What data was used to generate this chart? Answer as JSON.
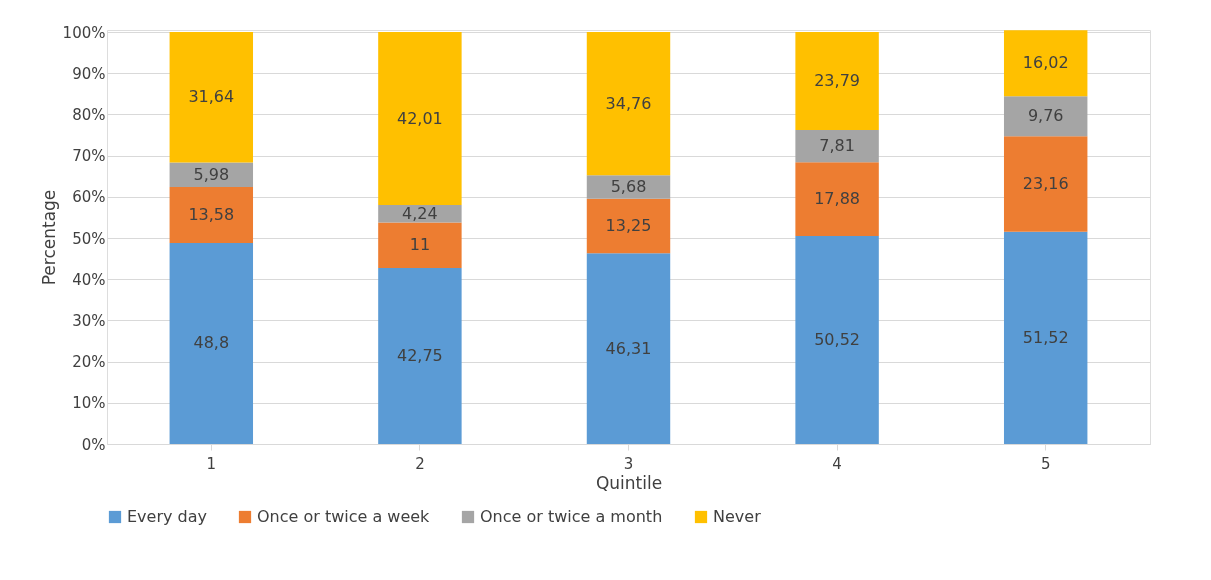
{
  "chart_data": {
    "type": "bar",
    "stacked": true,
    "xlabel": "Quintile",
    "ylabel": "Percentage",
    "categories": [
      "1",
      "2",
      "3",
      "4",
      "5"
    ],
    "series": [
      {
        "name": "Every day",
        "color": "#5b9bd5",
        "values": [
          48.8,
          42.75,
          46.31,
          50.52,
          51.52
        ],
        "value_labels": [
          "48,8",
          "42,75",
          "46,31",
          "50,52",
          "51,52"
        ]
      },
      {
        "name": "Once or twice a week",
        "color": "#ed7d31",
        "values": [
          13.58,
          11,
          13.25,
          17.88,
          23.16
        ],
        "value_labels": [
          "13,58",
          "11",
          "13,25",
          "17,88",
          "23,16"
        ]
      },
      {
        "name": "Once or twice a month",
        "color": "#a5a5a5",
        "values": [
          5.98,
          4.24,
          5.68,
          7.81,
          9.76
        ],
        "value_labels": [
          "5,98",
          "4,24",
          "5,68",
          "7,81",
          "9,76"
        ]
      },
      {
        "name": "Never",
        "color": "#ffc000",
        "values": [
          31.64,
          42.01,
          34.76,
          23.79,
          16.02
        ],
        "value_labels": [
          "31,64",
          "42,01",
          "34,76",
          "23,79",
          "16,02"
        ]
      }
    ],
    "ylim": [
      0,
      100.5
    ],
    "yticks": [
      {
        "value": 0,
        "label": "0%"
      },
      {
        "value": 10,
        "label": "10%"
      },
      {
        "value": 20,
        "label": "20%"
      },
      {
        "value": 30,
        "label": "30%"
      },
      {
        "value": 40,
        "label": "40%"
      },
      {
        "value": 50,
        "label": "50%"
      },
      {
        "value": 60,
        "label": "60%"
      },
      {
        "value": 70,
        "label": "70%"
      },
      {
        "value": 80,
        "label": "80%"
      },
      {
        "value": 90,
        "label": "90%"
      },
      {
        "value": 100,
        "label": "100%"
      }
    ],
    "grid": "y",
    "legend": "bottom"
  }
}
